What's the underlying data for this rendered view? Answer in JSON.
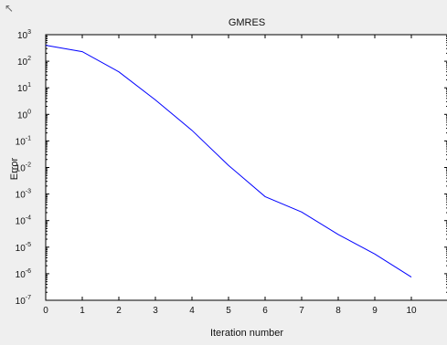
{
  "window": {
    "corner_icon_name": "cursor-icon"
  },
  "chart_data": {
    "type": "line",
    "title": "GMRES",
    "xlabel": "Iteration number",
    "ylabel": "Error",
    "x": [
      0,
      1,
      2,
      3,
      4,
      5,
      6,
      7,
      8,
      9,
      10
    ],
    "xlim": [
      0,
      11
    ],
    "xticks": [
      0,
      1,
      2,
      3,
      4,
      5,
      6,
      7,
      8,
      9,
      10
    ],
    "xtick_labels": [
      "0",
      "1",
      "2",
      "3",
      "4",
      "5",
      "6",
      "7",
      "8",
      "9",
      "10"
    ],
    "yscale": "log",
    "ylim": [
      1e-07,
      1000
    ],
    "yticks": [
      1e-07,
      1e-06,
      1e-05,
      0.0001,
      0.001,
      0.01,
      0.1,
      1,
      10,
      100,
      1000
    ],
    "ytick_exponents": [
      "-7",
      "-6",
      "-5",
      "-4",
      "-3",
      "-2",
      "-1",
      "0",
      "1",
      "2",
      "3"
    ],
    "ytick_base": "10",
    "grid": false,
    "series": [
      {
        "color": "#0000ff",
        "values": [
          400,
          230,
          40,
          3.5,
          0.25,
          0.012,
          0.0008,
          0.00021,
          3e-05,
          5.5e-06,
          7.5e-07
        ]
      }
    ],
    "colors": {
      "line": "#0000ff",
      "axes": "#000000",
      "plot_bg": "#ffffff",
      "figure_bg": "#efefef"
    }
  }
}
